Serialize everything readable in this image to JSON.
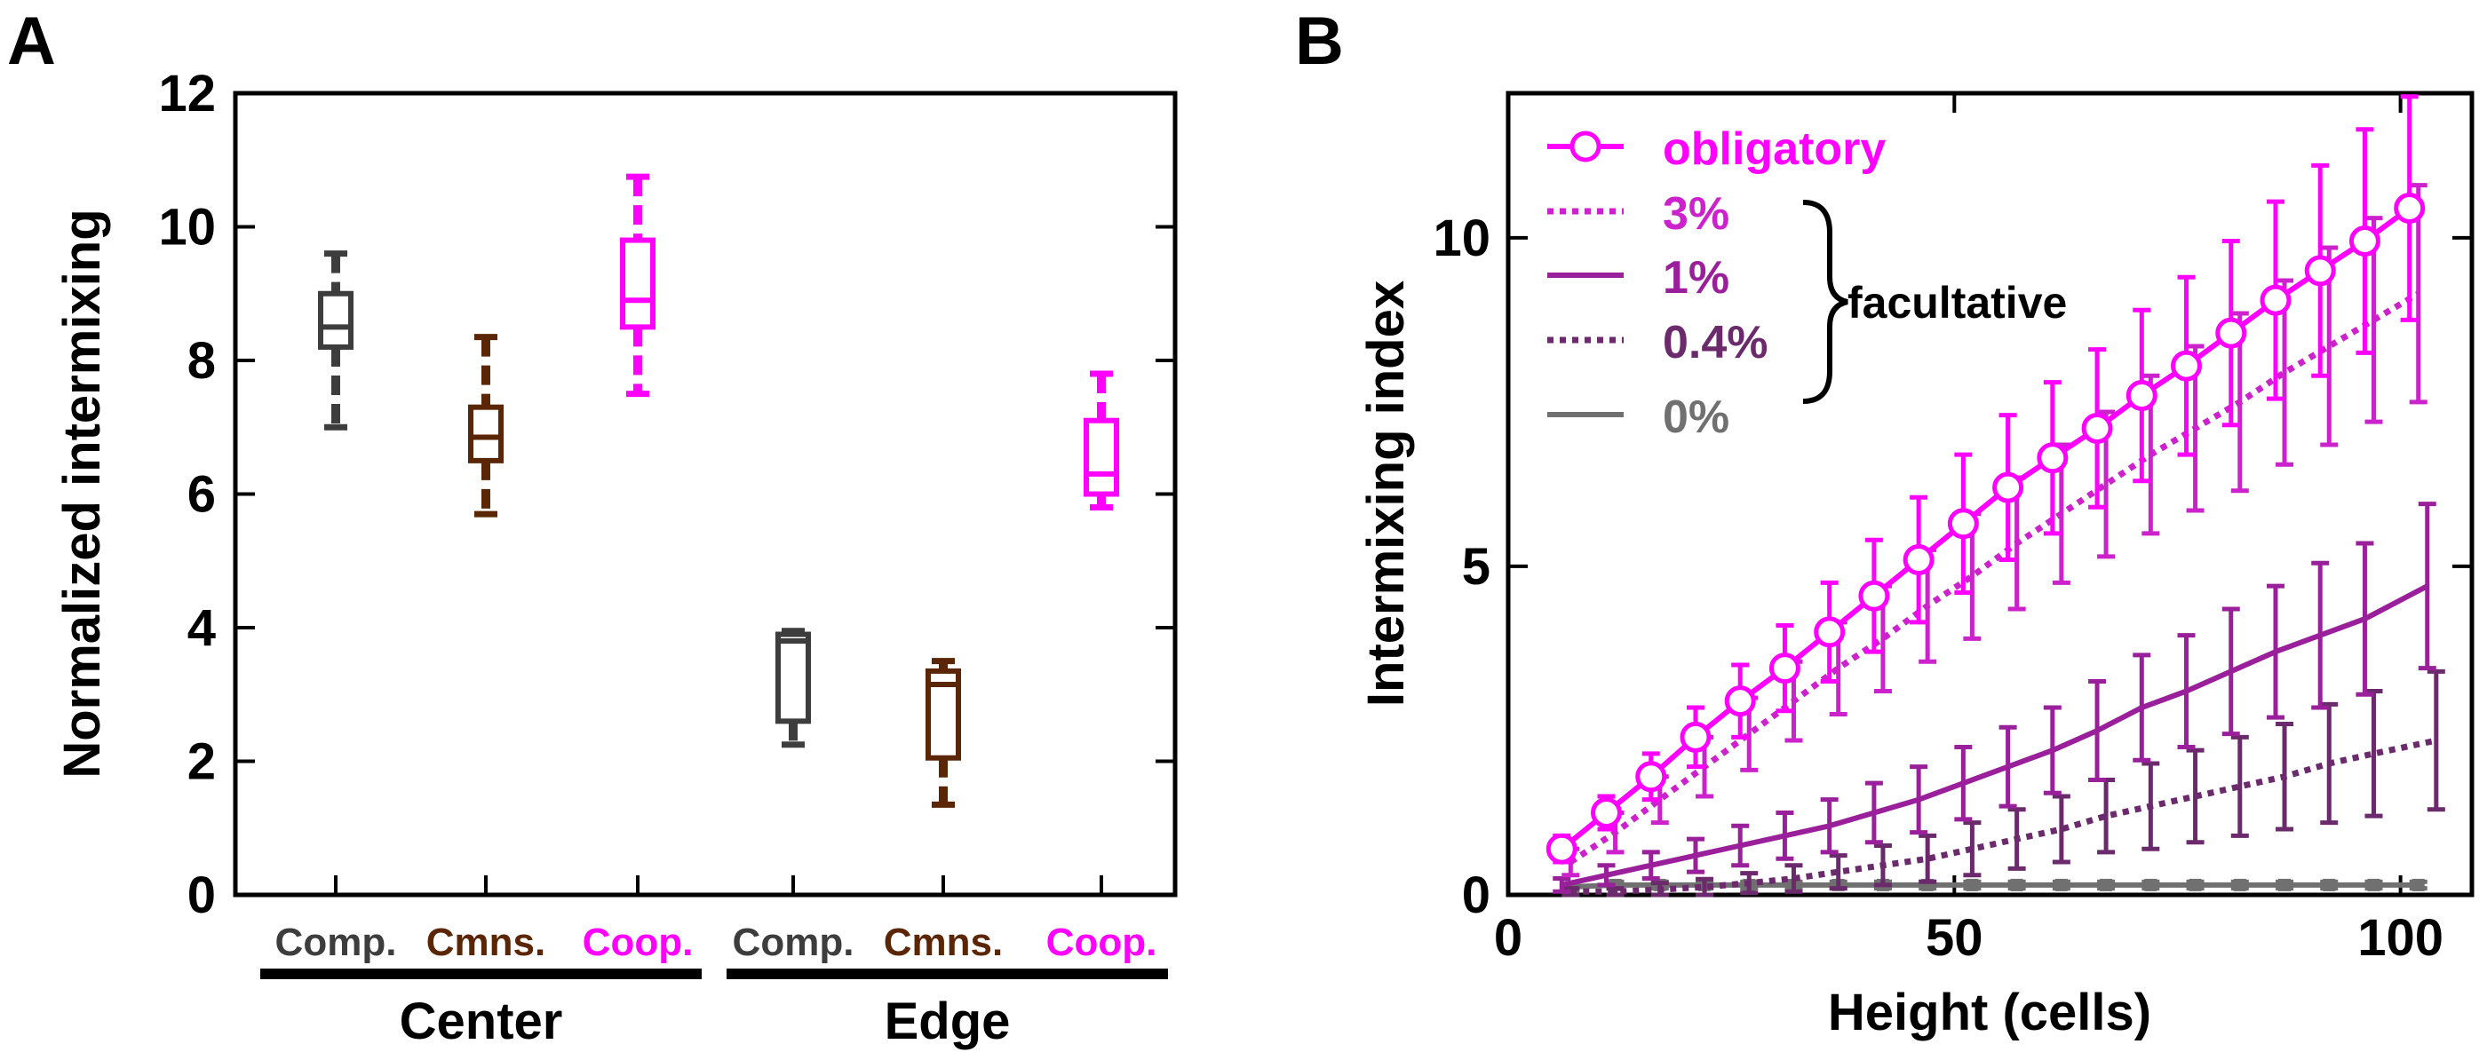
{
  "panels": {
    "a": {
      "letter": "A"
    },
    "b": {
      "letter": "B"
    }
  },
  "colors": {
    "comp": "#3d3d3d",
    "cmns": "#5a2606",
    "coop": "#ff00ff",
    "obligatory": "#ff00ff",
    "f3": "#cc22cc",
    "f1": "#9a1f9a",
    "f04": "#6b2a6b",
    "zero": "#707070",
    "axis": "#000000"
  },
  "chart_data": [
    {
      "type": "box",
      "ylabel": "Normalized intermixing",
      "ylim": [
        0,
        12
      ],
      "yticks": [
        0,
        2,
        4,
        6,
        8,
        10,
        12
      ],
      "groups": [
        {
          "label": "Center",
          "categories": [
            "Comp.",
            "Cmns.",
            "Coop."
          ]
        },
        {
          "label": "Edge",
          "categories": [
            "Comp.",
            "Cmns.",
            "Coop."
          ]
        }
      ],
      "boxes": [
        {
          "group": "Center",
          "category": "Comp.",
          "color_key": "comp",
          "min": 7.0,
          "q1": 8.2,
          "median": 8.5,
          "q3": 9.0,
          "max": 9.6
        },
        {
          "group": "Center",
          "category": "Cmns.",
          "color_key": "cmns",
          "min": 5.7,
          "q1": 6.5,
          "median": 6.85,
          "q3": 7.3,
          "max": 8.35
        },
        {
          "group": "Center",
          "category": "Coop.",
          "color_key": "coop",
          "min": 7.5,
          "q1": 8.5,
          "median": 8.9,
          "q3": 9.8,
          "max": 10.75
        },
        {
          "group": "Edge",
          "category": "Comp.",
          "color_key": "comp",
          "min": 2.25,
          "q1": 2.6,
          "median": 3.8,
          "q3": 3.9,
          "max": 3.95
        },
        {
          "group": "Edge",
          "category": "Cmns.",
          "color_key": "cmns",
          "min": 1.35,
          "q1": 2.05,
          "median": 3.15,
          "q3": 3.35,
          "max": 3.5
        },
        {
          "group": "Edge",
          "category": "Coop.",
          "color_key": "coop",
          "min": 5.8,
          "q1": 6.0,
          "median": 6.3,
          "q3": 7.1,
          "max": 7.8
        }
      ]
    },
    {
      "type": "line",
      "xlabel": "Height (cells)",
      "ylabel": "Intermixing index",
      "xlim": [
        0,
        108
      ],
      "ylim": [
        0,
        12.2
      ],
      "xticks": [
        0,
        50,
        100
      ],
      "yticks": [
        0,
        5,
        10
      ],
      "legend_group_label": "facultative",
      "series": [
        {
          "name": "obligatory",
          "color_key": "obligatory",
          "style": "solid-circle",
          "x": [
            6,
            11,
            16,
            21,
            26,
            31,
            36,
            41,
            46,
            51,
            56,
            61,
            66,
            71,
            76,
            81,
            86,
            91,
            96,
            101
          ],
          "y": [
            0.7,
            1.25,
            1.8,
            2.4,
            2.95,
            3.45,
            4.0,
            4.55,
            5.1,
            5.65,
            6.2,
            6.65,
            7.1,
            7.6,
            8.05,
            8.55,
            9.05,
            9.5,
            9.95,
            10.45
          ],
          "err": [
            0.2,
            0.25,
            0.35,
            0.45,
            0.55,
            0.65,
            0.75,
            0.85,
            0.95,
            1.05,
            1.1,
            1.15,
            1.2,
            1.3,
            1.35,
            1.4,
            1.5,
            1.6,
            1.7,
            1.7
          ]
        },
        {
          "name": "3%",
          "color_key": "f3",
          "style": "dotted",
          "x": [
            7,
            12,
            17,
            22,
            27,
            32,
            37,
            42,
            47,
            52,
            57,
            62,
            67,
            72,
            77,
            82,
            87,
            92,
            97,
            102
          ],
          "y": [
            0.5,
            0.95,
            1.45,
            1.95,
            2.45,
            2.95,
            3.45,
            3.9,
            4.4,
            4.85,
            5.35,
            5.8,
            6.25,
            6.7,
            7.1,
            7.5,
            7.95,
            8.35,
            8.75,
            9.15
          ],
          "err": [
            0.2,
            0.3,
            0.35,
            0.45,
            0.55,
            0.6,
            0.7,
            0.8,
            0.85,
            0.95,
            1.0,
            1.05,
            1.1,
            1.2,
            1.25,
            1.35,
            1.4,
            1.5,
            1.55,
            1.65
          ]
        },
        {
          "name": "1%",
          "color_key": "f1",
          "style": "solid",
          "x": [
            6,
            11,
            16,
            21,
            26,
            31,
            36,
            41,
            46,
            51,
            56,
            61,
            66,
            71,
            76,
            81,
            86,
            91,
            96,
            103
          ],
          "y": [
            0.15,
            0.3,
            0.45,
            0.6,
            0.75,
            0.9,
            1.05,
            1.25,
            1.45,
            1.7,
            1.95,
            2.2,
            2.5,
            2.85,
            3.1,
            3.4,
            3.7,
            3.95,
            4.2,
            4.7
          ],
          "err": [
            0.1,
            0.15,
            0.2,
            0.25,
            0.3,
            0.35,
            0.4,
            0.45,
            0.5,
            0.55,
            0.6,
            0.65,
            0.75,
            0.8,
            0.85,
            0.95,
            1.0,
            1.1,
            1.15,
            1.25
          ]
        },
        {
          "name": "0.4%",
          "color_key": "f04",
          "style": "dotted",
          "x": [
            7,
            12,
            17,
            22,
            27,
            32,
            37,
            42,
            47,
            52,
            57,
            62,
            67,
            72,
            77,
            82,
            87,
            92,
            97,
            104
          ],
          "y": [
            0.05,
            0.05,
            0.08,
            0.12,
            0.18,
            0.25,
            0.35,
            0.45,
            0.55,
            0.7,
            0.85,
            1.0,
            1.2,
            1.35,
            1.5,
            1.65,
            1.8,
            2.0,
            2.15,
            2.35
          ],
          "err": [
            0.05,
            0.05,
            0.1,
            0.12,
            0.15,
            0.2,
            0.25,
            0.3,
            0.35,
            0.4,
            0.45,
            0.5,
            0.55,
            0.65,
            0.7,
            0.75,
            0.8,
            0.9,
            0.95,
            1.05
          ]
        },
        {
          "name": "0%",
          "color_key": "zero",
          "style": "solid-square",
          "x": [
            7,
            12,
            17,
            22,
            27,
            32,
            37,
            42,
            47,
            52,
            57,
            62,
            67,
            72,
            77,
            82,
            87,
            92,
            97,
            102
          ],
          "y": [
            0.12,
            0.15,
            0.15,
            0.15,
            0.15,
            0.15,
            0.15,
            0.15,
            0.15,
            0.15,
            0.15,
            0.15,
            0.15,
            0.15,
            0.15,
            0.15,
            0.15,
            0.15,
            0.15,
            0.15
          ],
          "err": [
            0.05,
            0.05,
            0.05,
            0.05,
            0.05,
            0.05,
            0.05,
            0.05,
            0.05,
            0.05,
            0.05,
            0.05,
            0.05,
            0.05,
            0.05,
            0.05,
            0.05,
            0.05,
            0.05,
            0.05
          ]
        }
      ]
    }
  ]
}
